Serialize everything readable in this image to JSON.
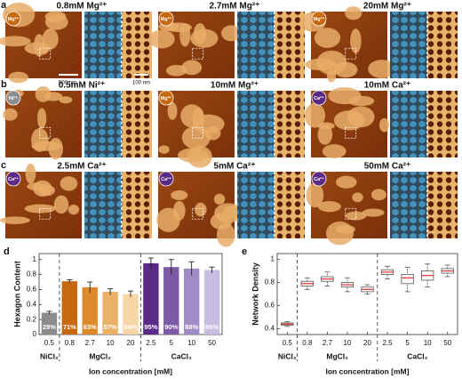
{
  "panels": [
    {
      "label": "a",
      "items": [
        {
          "badge": "Mg²⁺",
          "badge_color": "#c8680f",
          "title": "0.8mM Mg²⁺"
        },
        {
          "badge": "Mg²⁺",
          "badge_color": "#c8680f",
          "title": "2.7mM Mg²⁺"
        },
        {
          "badge": "Mg²⁺",
          "badge_color": "#c8680f",
          "title": "20mM Mg²⁺"
        }
      ]
    },
    {
      "label": "b",
      "items": [
        {
          "badge": "Ni²⁺",
          "badge_color": "#8c8c8c",
          "title": "0.5mM Ni²⁺"
        },
        {
          "badge": "Mg²⁺",
          "badge_color": "#c8680f",
          "title": "10mM Mg²⁺"
        },
        {
          "badge": "Ca²⁺",
          "badge_color": "#5b2a86",
          "title": "10mM Ca²⁺"
        }
      ]
    },
    {
      "label": "c",
      "items": [
        {
          "badge": "Ca²⁺",
          "badge_color": "#5b2a86",
          "title": "2.5mM Ca²⁺"
        },
        {
          "badge": "Ca²⁺",
          "badge_color": "#5b2a86",
          "title": "5mM Ca²⁺"
        },
        {
          "badge": "Ca²⁺",
          "badge_color": "#5b2a86",
          "title": "50mM Ca²⁺"
        }
      ]
    }
  ],
  "scale_bars": [
    "500 nm",
    "100 nm"
  ],
  "chart_data": [
    {
      "type": "bar",
      "panel_label": "d",
      "ylabel": "Hexagon Content",
      "xlabel": "Ion concentration [mM]",
      "ylim": [
        0,
        1.08
      ],
      "yticks": [
        0,
        0.2,
        0.4,
        0.6,
        0.8,
        1
      ],
      "groups": [
        {
          "name": "NiCl₂",
          "categories": [
            "0.5"
          ],
          "values": [
            0.29
          ],
          "errors": [
            0.02
          ],
          "value_labels": [
            "29%"
          ],
          "colors": [
            "#8c8c8c"
          ]
        },
        {
          "name": "MgCl₂",
          "categories": [
            "0.8",
            "2.7",
            "10",
            "20"
          ],
          "values": [
            0.71,
            0.63,
            0.57,
            0.54
          ],
          "errors": [
            0.02,
            0.07,
            0.04,
            0.04
          ],
          "value_labels": [
            "71%",
            "63%",
            "57%",
            "54%"
          ],
          "colors": [
            "#c8680f",
            "#dc8a2c",
            "#eab066",
            "#f6d6a4"
          ]
        },
        {
          "name": "CaCl₂",
          "categories": [
            "2.5",
            "5",
            "10",
            "50"
          ],
          "values": [
            0.95,
            0.9,
            0.88,
            0.86
          ],
          "errors": [
            0.07,
            0.1,
            0.09,
            0.04
          ],
          "value_labels": [
            "95%",
            "90%",
            "88%",
            "86%"
          ],
          "colors": [
            "#5b2a86",
            "#7d5aa6",
            "#a08cc4",
            "#c8bce0"
          ]
        }
      ]
    },
    {
      "type": "box",
      "panel_label": "e",
      "ylabel": "Network Density",
      "xlabel": "Ion concentration [mM]",
      "ylim": [
        0.35,
        1.05
      ],
      "yticks": [
        0.4,
        0.6,
        0.8,
        1
      ],
      "box_color": "#555555",
      "median_color": "#e03030",
      "groups": [
        {
          "name": "NiCl₂",
          "categories": [
            "0.5"
          ],
          "boxes": [
            {
              "min": 0.42,
              "q1": 0.43,
              "median": 0.44,
              "q3": 0.45,
              "max": 0.46
            }
          ]
        },
        {
          "name": "MgCl₂",
          "categories": [
            "0.8",
            "2.7",
            "10",
            "20"
          ],
          "boxes": [
            {
              "min": 0.74,
              "q1": 0.77,
              "median": 0.79,
              "q3": 0.81,
              "max": 0.84
            },
            {
              "min": 0.77,
              "q1": 0.81,
              "median": 0.83,
              "q3": 0.85,
              "max": 0.89
            },
            {
              "min": 0.72,
              "q1": 0.76,
              "median": 0.78,
              "q3": 0.8,
              "max": 0.84
            },
            {
              "min": 0.7,
              "q1": 0.72,
              "median": 0.74,
              "q3": 0.76,
              "max": 0.78
            }
          ]
        },
        {
          "name": "CaCl₂",
          "categories": [
            "2.5",
            "5",
            "10",
            "50"
          ],
          "boxes": [
            {
              "min": 0.83,
              "q1": 0.87,
              "median": 0.89,
              "q3": 0.91,
              "max": 0.94
            },
            {
              "min": 0.72,
              "q1": 0.79,
              "median": 0.84,
              "q3": 0.87,
              "max": 0.93
            },
            {
              "min": 0.76,
              "q1": 0.82,
              "median": 0.86,
              "q3": 0.9,
              "max": 0.96
            },
            {
              "min": 0.85,
              "q1": 0.88,
              "median": 0.9,
              "q3": 0.92,
              "max": 0.95
            }
          ]
        }
      ]
    }
  ]
}
